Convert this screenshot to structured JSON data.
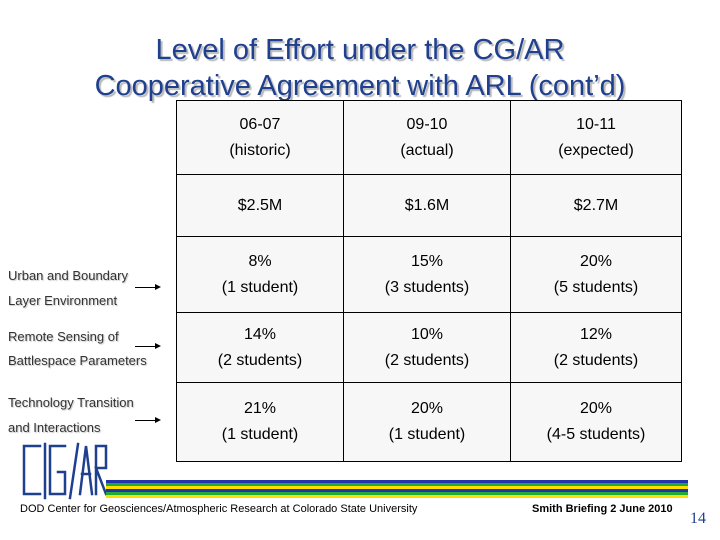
{
  "title": {
    "line1": "Level of Effort under the CG/AR",
    "line2": "Cooperative Agreement with ARL (cont’d)"
  },
  "table": {
    "header": [
      {
        "year": "06-07",
        "note": "(historic)"
      },
      {
        "year": "09-10",
        "note": "(actual)"
      },
      {
        "year": "10-11",
        "note": "(expected)"
      }
    ],
    "funding": [
      "$2.5M",
      "$1.6M",
      "$2.7M"
    ],
    "rows": [
      {
        "label_line1": "Urban and Boundary",
        "label_line2": "Layer Environment",
        "cells": [
          {
            "pct": "8%",
            "students": "(1 student)"
          },
          {
            "pct": "15%",
            "students": "(3 students)"
          },
          {
            "pct": "20%",
            "students": "(5 students)"
          }
        ]
      },
      {
        "label_line1": "Remote Sensing of",
        "label_line2": "Battlespace Parameters",
        "cells": [
          {
            "pct": "14%",
            "students": "(2 students)"
          },
          {
            "pct": "10%",
            "students": "(2 students)"
          },
          {
            "pct": "12%",
            "students": "(2 students)"
          }
        ]
      },
      {
        "label_line1": "Technology Transition",
        "label_line2": "and Interactions",
        "cells": [
          {
            "pct": "21%",
            "students": "(1 student)"
          },
          {
            "pct": "20%",
            "students": "(1 student)"
          },
          {
            "pct": "20%",
            "students": "(4-5 students)"
          }
        ]
      }
    ]
  },
  "logo": {
    "text": "CG/AR",
    "color": "#1f3f8f"
  },
  "footer": {
    "left": "DOD Center for Geosciences/Atmospheric Research at Colorado State University",
    "right": "Smith Briefing 2 June 2010",
    "page_number": "14"
  },
  "colors": {
    "title": "#1f3f8f",
    "band_blue": "#2233aa",
    "band_green": "#22aa33",
    "band_yellow": "#ffdd00"
  }
}
